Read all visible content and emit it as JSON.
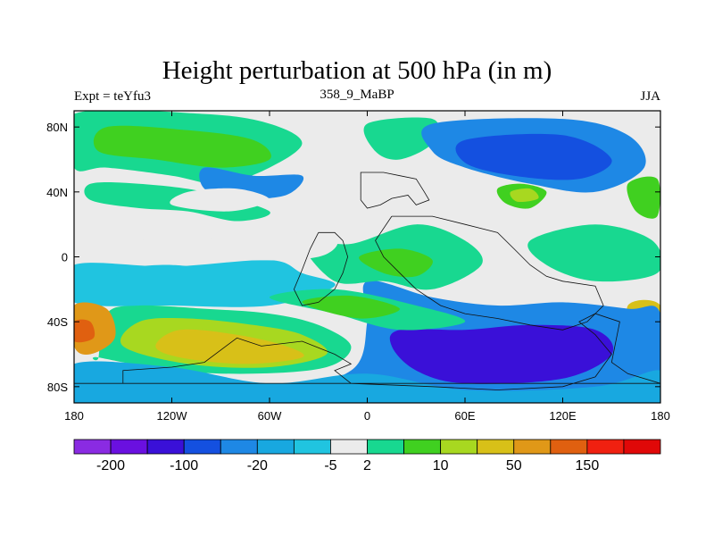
{
  "chart_data": {
    "type": "heatmap",
    "title": "Height perturbation at 500 hPa (in m)",
    "subtitle_left": "Expt = teYfu3",
    "subtitle_center": "358_9_MaBP",
    "subtitle_right": "JJA",
    "x_ticks": [
      "180",
      "120W",
      "60W",
      "0",
      "60E",
      "120E",
      "180"
    ],
    "x_tick_values": [
      -180,
      -120,
      -60,
      0,
      60,
      120,
      180
    ],
    "y_ticks": [
      "80N",
      "40N",
      "0",
      "40S",
      "80S"
    ],
    "y_tick_values": [
      80,
      40,
      0,
      -40,
      -80
    ],
    "xlim": [
      -180,
      180
    ],
    "ylim": [
      -90,
      90
    ],
    "colorbar": {
      "colors": [
        "#8a2be2",
        "#6a10e0",
        "#3a10d8",
        "#1450e0",
        "#1e88e5",
        "#18a8e0",
        "#20c4e0",
        "#ebebeb",
        "#18d890",
        "#40d020",
        "#a8d820",
        "#d8c018",
        "#e09818",
        "#e06010",
        "#f02010",
        "#e00808"
      ],
      "labels": [
        "-200",
        "-100",
        "-20",
        "-5",
        "2",
        "10",
        "50",
        "150"
      ],
      "label_boundaries": [
        1,
        3,
        5,
        7,
        8,
        10,
        12,
        14
      ]
    },
    "regions": [
      {
        "level": 7,
        "poly": [
          [
            -180,
            90
          ],
          [
            180,
            90
          ],
          [
            180,
            -90
          ],
          [
            -180,
            -90
          ]
        ]
      },
      {
        "level": 6,
        "poly": [
          [
            -180,
            -5
          ],
          [
            -120,
            -6
          ],
          [
            -60,
            -2
          ],
          [
            -40,
            -10
          ],
          [
            -20,
            -18
          ],
          [
            -60,
            -30
          ],
          [
            -120,
            -30
          ],
          [
            -180,
            -28
          ]
        ]
      },
      {
        "level": 8,
        "poly": [
          [
            -165,
            -62
          ],
          [
            -160,
            -35
          ],
          [
            -140,
            -30
          ],
          [
            -100,
            -32
          ],
          [
            -60,
            -35
          ],
          [
            -30,
            -42
          ],
          [
            -10,
            -55
          ],
          [
            -25,
            -68
          ],
          [
            -70,
            -72
          ],
          [
            -120,
            -70
          ],
          [
            -165,
            -62
          ]
        ]
      },
      {
        "level": 10,
        "poly": [
          [
            -150,
            -55
          ],
          [
            -140,
            -40
          ],
          [
            -110,
            -38
          ],
          [
            -70,
            -42
          ],
          [
            -40,
            -48
          ],
          [
            -25,
            -60
          ],
          [
            -60,
            -68
          ],
          [
            -110,
            -66
          ]
        ]
      },
      {
        "level": 11,
        "poly": [
          [
            -130,
            -55
          ],
          [
            -115,
            -45
          ],
          [
            -80,
            -48
          ],
          [
            -50,
            -55
          ],
          [
            -40,
            -62
          ],
          [
            -75,
            -66
          ],
          [
            -115,
            -62
          ]
        ]
      },
      {
        "level": 12,
        "poly": [
          [
            -180,
            -30
          ],
          [
            -160,
            -32
          ],
          [
            -155,
            -50
          ],
          [
            -170,
            -60
          ],
          [
            -180,
            -55
          ]
        ]
      },
      {
        "level": 13,
        "poly": [
          [
            -180,
            -40
          ],
          [
            -170,
            -40
          ],
          [
            -168,
            -50
          ],
          [
            -180,
            -52
          ]
        ]
      },
      {
        "level": 11,
        "poly": [
          [
            160,
            -30
          ],
          [
            180,
            -30
          ],
          [
            180,
            -60
          ],
          [
            165,
            -55
          ]
        ]
      },
      {
        "level": 8,
        "poly": [
          [
            -180,
            88
          ],
          [
            -100,
            88
          ],
          [
            -60,
            82
          ],
          [
            -40,
            70
          ],
          [
            -60,
            55
          ],
          [
            -90,
            45
          ],
          [
            -120,
            50
          ],
          [
            -160,
            55
          ],
          [
            -180,
            55
          ]
        ]
      },
      {
        "level": 9,
        "poly": [
          [
            -160,
            80
          ],
          [
            -110,
            78
          ],
          [
            -70,
            72
          ],
          [
            -60,
            60
          ],
          [
            -90,
            55
          ],
          [
            -130,
            60
          ],
          [
            -165,
            65
          ]
        ]
      },
      {
        "level": 8,
        "poly": [
          [
            -170,
            35
          ],
          [
            -140,
            30
          ],
          [
            -110,
            28
          ],
          [
            -80,
            22
          ],
          [
            -60,
            28
          ],
          [
            -100,
            40
          ],
          [
            -140,
            45
          ],
          [
            -170,
            45
          ]
        ]
      },
      {
        "level": 8,
        "poly": [
          [
            0,
            82
          ],
          [
            40,
            85
          ],
          [
            40,
            70
          ],
          [
            20,
            60
          ],
          [
            5,
            65
          ]
        ]
      },
      {
        "level": 4,
        "poly": [
          [
            40,
            82
          ],
          [
            120,
            85
          ],
          [
            160,
            75
          ],
          [
            170,
            55
          ],
          [
            140,
            40
          ],
          [
            100,
            45
          ],
          [
            60,
            55
          ],
          [
            40,
            65
          ]
        ]
      },
      {
        "level": 3,
        "poly": [
          [
            60,
            72
          ],
          [
            120,
            75
          ],
          [
            150,
            60
          ],
          [
            130,
            48
          ],
          [
            90,
            50
          ],
          [
            60,
            58
          ]
        ]
      },
      {
        "level": 9,
        "poly": [
          [
            80,
            42
          ],
          [
            95,
            45
          ],
          [
            110,
            40
          ],
          [
            100,
            30
          ],
          [
            85,
            33
          ]
        ]
      },
      {
        "level": 10,
        "poly": [
          [
            88,
            40
          ],
          [
            100,
            42
          ],
          [
            105,
            36
          ],
          [
            92,
            34
          ]
        ]
      },
      {
        "level": 9,
        "poly": [
          [
            160,
            45
          ],
          [
            178,
            48
          ],
          [
            178,
            25
          ],
          [
            165,
            28
          ]
        ]
      },
      {
        "level": 4,
        "poly": [
          [
            0,
            -15
          ],
          [
            40,
            -25
          ],
          [
            80,
            -30
          ],
          [
            120,
            -28
          ],
          [
            160,
            -32
          ],
          [
            180,
            -35
          ],
          [
            180,
            -90
          ],
          [
            -180,
            -90
          ],
          [
            -180,
            -78
          ],
          [
            -60,
            -80
          ],
          [
            -10,
            -70
          ],
          [
            0,
            -40
          ]
        ]
      },
      {
        "level": 2,
        "poly": [
          [
            20,
            -45
          ],
          [
            60,
            -45
          ],
          [
            100,
            -42
          ],
          [
            140,
            -45
          ],
          [
            150,
            -60
          ],
          [
            120,
            -75
          ],
          [
            60,
            -78
          ],
          [
            30,
            -70
          ],
          [
            15,
            -55
          ]
        ]
      },
      {
        "level": 5,
        "poly": [
          [
            -180,
            -66
          ],
          [
            -120,
            -68
          ],
          [
            -60,
            -78
          ],
          [
            0,
            -72
          ],
          [
            60,
            -82
          ],
          [
            140,
            -80
          ],
          [
            180,
            -70
          ],
          [
            180,
            -90
          ],
          [
            -180,
            -90
          ]
        ]
      },
      {
        "level": 8,
        "poly": [
          [
            -40,
            10
          ],
          [
            -10,
            8
          ],
          [
            30,
            20
          ],
          [
            60,
            10
          ],
          [
            70,
            -5
          ],
          [
            40,
            -20
          ],
          [
            10,
            -15
          ],
          [
            -20,
            -15
          ]
        ]
      },
      {
        "level": 9,
        "poly": [
          [
            -5,
            0
          ],
          [
            20,
            5
          ],
          [
            40,
            -2
          ],
          [
            30,
            -12
          ],
          [
            10,
            -10
          ]
        ]
      },
      {
        "level": 8,
        "poly": [
          [
            -60,
            -25
          ],
          [
            -20,
            -20
          ],
          [
            30,
            -30
          ],
          [
            60,
            -40
          ],
          [
            20,
            -45
          ],
          [
            -20,
            -35
          ]
        ]
      },
      {
        "level": 9,
        "poly": [
          [
            -40,
            -28
          ],
          [
            -10,
            -24
          ],
          [
            20,
            -32
          ],
          [
            -5,
            -38
          ]
        ]
      },
      {
        "level": 8,
        "poly": [
          [
            100,
            10
          ],
          [
            140,
            20
          ],
          [
            175,
            10
          ],
          [
            178,
            -10
          ],
          [
            140,
            -15
          ],
          [
            110,
            -5
          ]
        ]
      },
      {
        "level": 4,
        "poly": [
          [
            -100,
            55
          ],
          [
            -70,
            50
          ],
          [
            -40,
            50
          ],
          [
            -50,
            38
          ],
          [
            -80,
            36
          ],
          [
            -100,
            42
          ]
        ]
      },
      {
        "level": 6,
        "poly": [
          [
            -150,
            -8
          ],
          [
            -120,
            -5
          ],
          [
            -90,
            -10
          ],
          [
            -110,
            -18
          ],
          [
            -150,
            -18
          ]
        ]
      },
      {
        "level": 7,
        "poly": [
          [
            -180,
            12
          ],
          [
            -120,
            10
          ],
          [
            -60,
            15
          ],
          [
            -20,
            12
          ],
          [
            -30,
            0
          ],
          [
            -80,
            -2
          ],
          [
            -150,
            2
          ],
          [
            -180,
            0
          ]
        ]
      },
      {
        "level": 7,
        "poly": [
          [
            -120,
            32
          ],
          [
            -85,
            28
          ],
          [
            -60,
            35
          ],
          [
            -80,
            42
          ],
          [
            -110,
            40
          ]
        ]
      }
    ],
    "outline": [
      [
        [
          -4,
          45
        ],
        [
          -4,
          52
        ],
        [
          10,
          52
        ],
        [
          20,
          50
        ],
        [
          30,
          48
        ],
        [
          35,
          40
        ],
        [
          38,
          35
        ],
        [
          30,
          32
        ],
        [
          25,
          38
        ],
        [
          15,
          36
        ],
        [
          8,
          32
        ],
        [
          0,
          30
        ],
        [
          -4,
          35
        ],
        [
          -4,
          45
        ]
      ],
      [
        [
          -30,
          15
        ],
        [
          -20,
          15
        ],
        [
          -15,
          10
        ],
        [
          -12,
          0
        ],
        [
          -15,
          -10
        ],
        [
          -20,
          -20
        ],
        [
          -30,
          -28
        ],
        [
          -40,
          -30
        ],
        [
          -45,
          -20
        ],
        [
          -40,
          -8
        ],
        [
          -35,
          5
        ],
        [
          -30,
          15
        ]
      ],
      [
        [
          15,
          25
        ],
        [
          40,
          25
        ],
        [
          60,
          20
        ],
        [
          80,
          15
        ],
        [
          90,
          5
        ],
        [
          100,
          -5
        ],
        [
          110,
          -12
        ],
        [
          120,
          -15
        ],
        [
          140,
          -18
        ],
        [
          145,
          -30
        ],
        [
          135,
          -40
        ],
        [
          120,
          -45
        ],
        [
          100,
          -42
        ],
        [
          80,
          -38
        ],
        [
          60,
          -35
        ],
        [
          45,
          -30
        ],
        [
          30,
          -20
        ],
        [
          20,
          -10
        ],
        [
          10,
          0
        ],
        [
          5,
          10
        ],
        [
          15,
          25
        ]
      ],
      [
        [
          -150,
          -78
        ],
        [
          -150,
          -70
        ],
        [
          -120,
          -68
        ],
        [
          -100,
          -65
        ],
        [
          -80,
          -50
        ],
        [
          -65,
          -55
        ],
        [
          -40,
          -52
        ],
        [
          -20,
          -60
        ],
        [
          -10,
          -66
        ],
        [
          -20,
          -70
        ],
        [
          -10,
          -78
        ],
        [
          40,
          -80
        ],
        [
          80,
          -82
        ],
        [
          120,
          -80
        ],
        [
          140,
          -74
        ],
        [
          150,
          -60
        ],
        [
          140,
          -48
        ],
        [
          130,
          -40
        ],
        [
          140,
          -35
        ],
        [
          155,
          -40
        ],
        [
          150,
          -65
        ],
        [
          160,
          -72
        ],
        [
          180,
          -78
        ],
        [
          -180,
          -78
        ],
        [
          -150,
          -78
        ]
      ]
    ]
  }
}
